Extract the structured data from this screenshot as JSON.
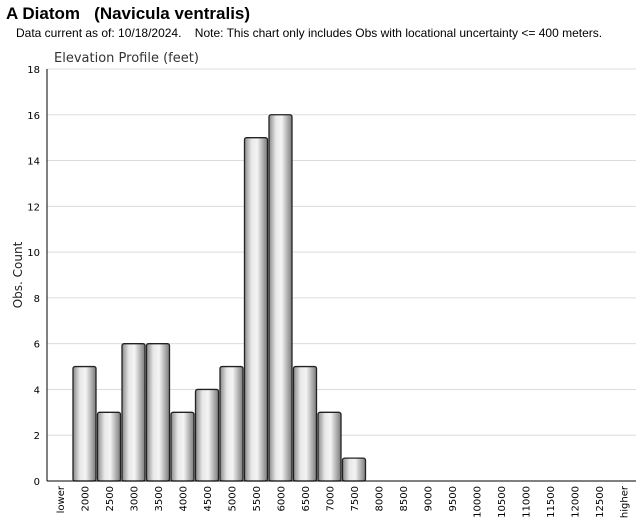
{
  "header": {
    "title": "A Diatom   (Navicula ventralis)",
    "subtitle": "Data current as of: 10/18/2024.    Note: This chart only includes Obs with locational uncertainty <= 400 meters."
  },
  "chart_data": {
    "type": "bar",
    "title": "Elevation Profile (feet)",
    "xlabel": "",
    "ylabel": "Obs. Count",
    "ylim": [
      0,
      18
    ],
    "yticks": [
      0,
      2,
      4,
      6,
      8,
      10,
      12,
      14,
      16,
      18
    ],
    "grid": true,
    "categories": [
      "lower",
      "2000",
      "2500",
      "3000",
      "3500",
      "4000",
      "4500",
      "5000",
      "5500",
      "6000",
      "6500",
      "7000",
      "7500",
      "8000",
      "8500",
      "9000",
      "9500",
      "10000",
      "10500",
      "11000",
      "11500",
      "12000",
      "12500",
      "higher"
    ],
    "values": [
      0,
      5,
      3,
      6,
      6,
      3,
      4,
      5,
      15,
      16,
      5,
      3,
      1,
      0,
      0,
      0,
      0,
      0,
      0,
      0,
      0,
      0,
      0,
      0
    ]
  }
}
